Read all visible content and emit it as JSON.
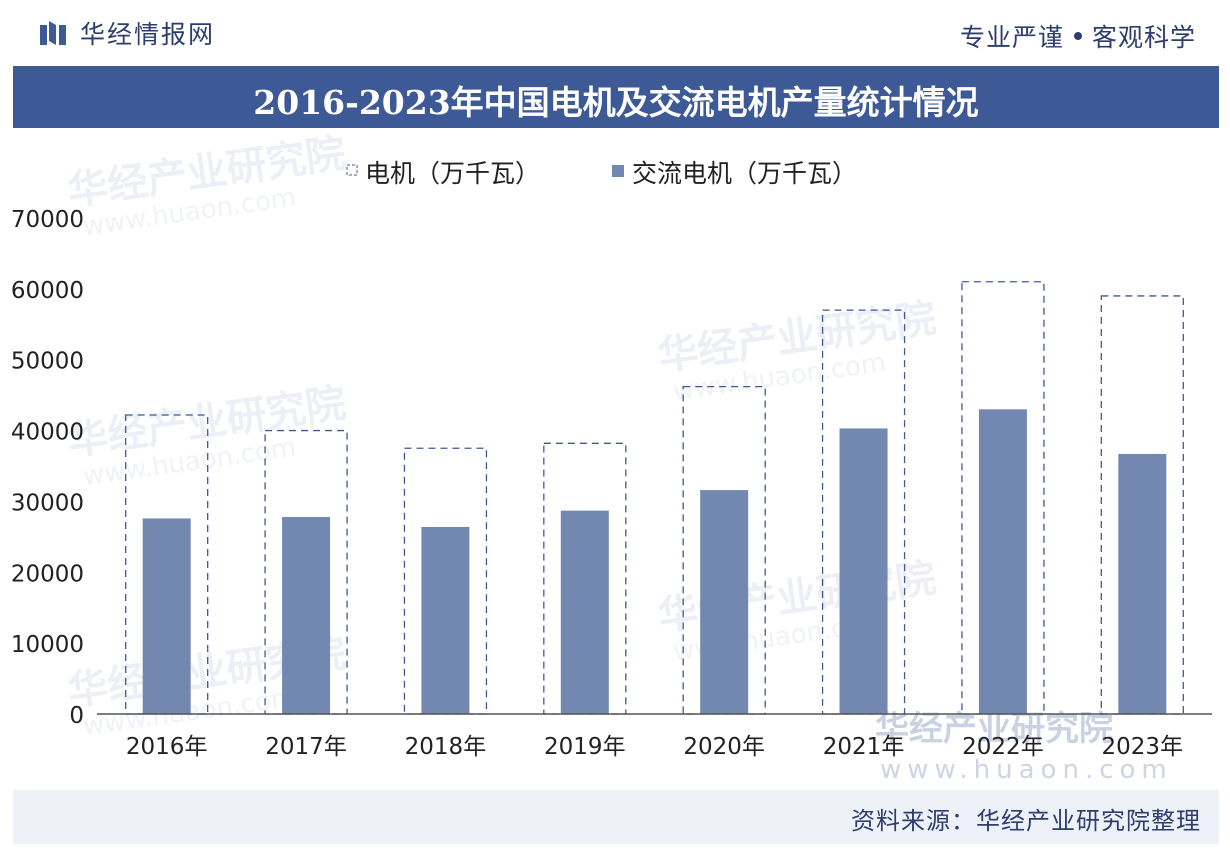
{
  "header": {
    "brand": "华经情报网",
    "slogan_left": "专业严谨",
    "slogan_right": "客观科学",
    "title": "2016-2023年中国电机及交流电机产量统计情况"
  },
  "footer": {
    "source": "资料来源：华经产业研究院整理"
  },
  "watermark": {
    "org": "华经产业研究院",
    "site": "www.huaon.com"
  },
  "colors": {
    "title_bg": "#3e5a96",
    "bar_solid": "#7288b0",
    "bar_outline": "#3e5a96",
    "text": "#2c3e6e"
  },
  "chart_data": {
    "type": "bar",
    "categories": [
      "2016年",
      "2017年",
      "2018年",
      "2019年",
      "2020年",
      "2021年",
      "2022年",
      "2023年"
    ],
    "series": [
      {
        "name": "电机（万千瓦）",
        "style": "dashed-outline",
        "values": [
          42200,
          40000,
          37500,
          38200,
          46200,
          57000,
          61000,
          59000
        ]
      },
      {
        "name": "交流电机（万千瓦）",
        "style": "solid",
        "values": [
          27600,
          27800,
          26400,
          28700,
          31600,
          40300,
          43000,
          36700
        ]
      }
    ],
    "ylim": [
      0,
      70000
    ],
    "yticks": [
      "0",
      "10000",
      "20000",
      "30000",
      "40000",
      "50000",
      "60000",
      "70000"
    ],
    "legend_position": "top-center",
    "grid": false
  }
}
